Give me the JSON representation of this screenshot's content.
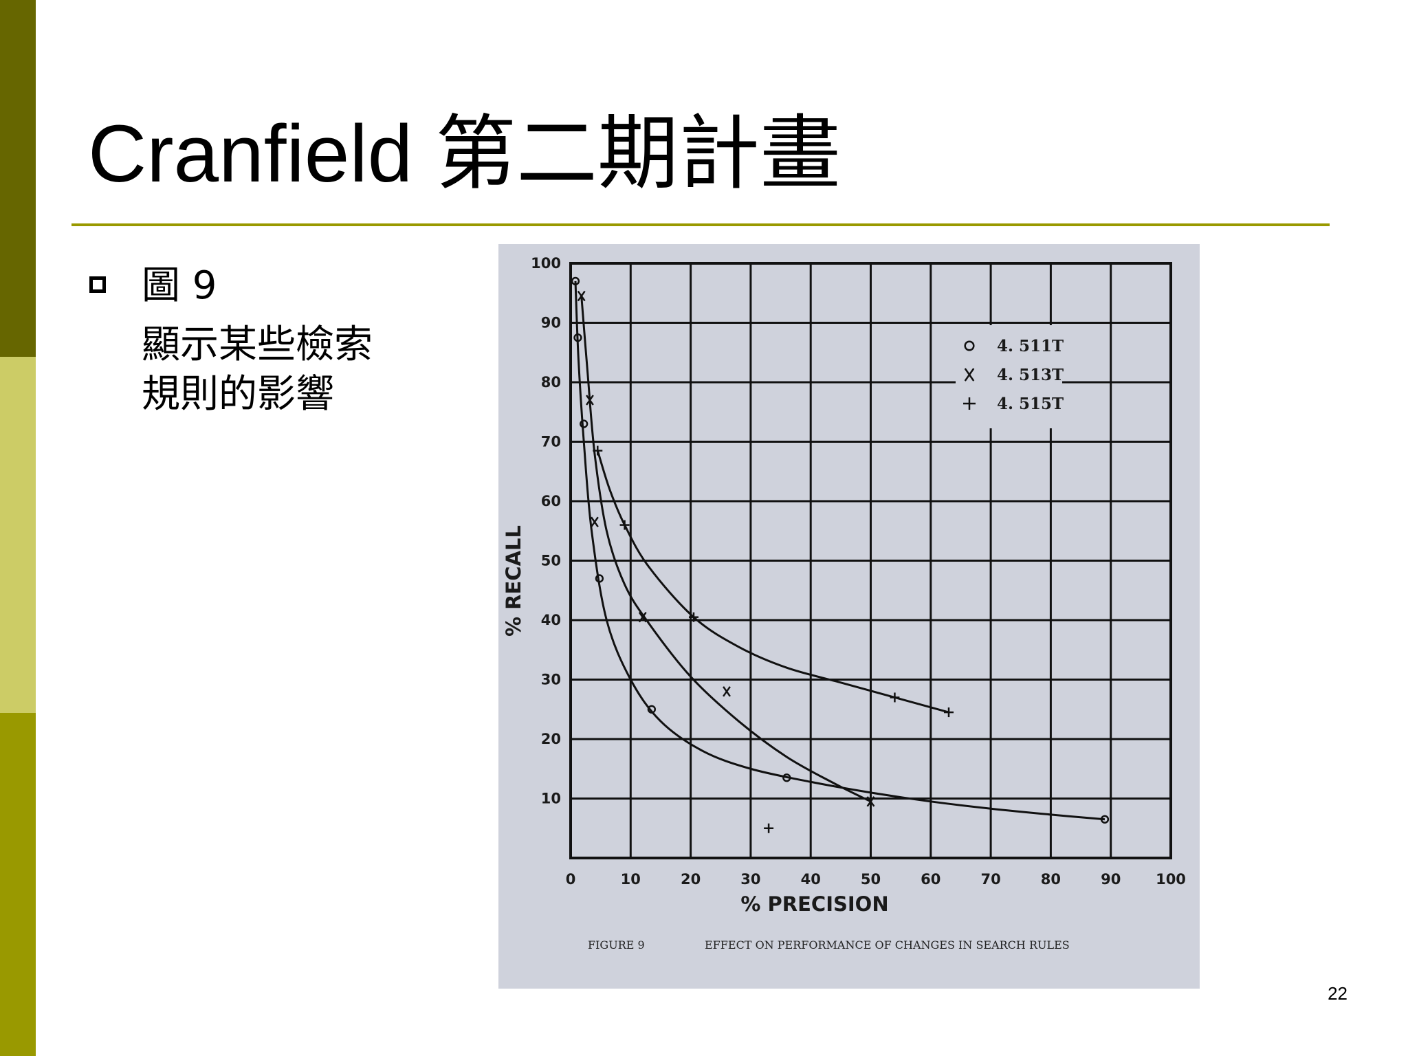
{
  "slide": {
    "title": "Cranfield 第二期計畫",
    "bullet": {
      "head": "圖 9",
      "lines": [
        "顯示某些檢索",
        "規則的影響"
      ]
    },
    "page_number": "22"
  },
  "colors": {
    "bar_top": "#666600",
    "bar_mid": "#cccc66",
    "bar_bottom": "#999900",
    "title_rule": "#999900",
    "figure_background": "#cfd2dc",
    "ink": "#111111"
  },
  "chart_data": {
    "type": "scatter",
    "caption_left": "FIGURE 9",
    "caption_right": "EFFECT ON PERFORMANCE OF CHANGES IN SEARCH RULES",
    "xlabel": "% PRECISION",
    "ylabel": "% RECALL",
    "xlim": [
      0,
      100
    ],
    "ylim": [
      0,
      100
    ],
    "x_ticks": [
      0,
      10,
      20,
      30,
      40,
      50,
      60,
      70,
      80,
      90,
      100
    ],
    "y_ticks": [
      10,
      20,
      30,
      40,
      50,
      60,
      70,
      80,
      90,
      100
    ],
    "grid": true,
    "legend_position": "top-right",
    "series": [
      {
        "name": "4.511T",
        "marker": "O",
        "points": [
          [
            0.8,
            97
          ],
          [
            1.2,
            87.5
          ],
          [
            2.2,
            73
          ],
          [
            4.8,
            47
          ],
          [
            13.5,
            25
          ],
          [
            36,
            13.5
          ],
          [
            89,
            6.5
          ]
        ],
        "curve": [
          [
            0.8,
            97
          ],
          [
            1.3,
            84
          ],
          [
            2.2,
            70
          ],
          [
            3.5,
            55
          ],
          [
            6,
            40
          ],
          [
            10,
            30
          ],
          [
            15,
            23
          ],
          [
            22,
            18
          ],
          [
            30,
            15
          ],
          [
            40,
            12.8
          ],
          [
            50,
            11
          ],
          [
            60,
            9.5
          ],
          [
            70,
            8.3
          ],
          [
            80,
            7.3
          ],
          [
            89,
            6.5
          ]
        ]
      },
      {
        "name": "4.513T",
        "marker": "X",
        "points": [
          [
            1.8,
            94.5
          ],
          [
            3.2,
            77
          ],
          [
            4,
            56.5
          ],
          [
            12,
            40.5
          ],
          [
            26,
            28
          ],
          [
            50,
            9.5
          ]
        ],
        "curve": [
          [
            1.8,
            94.5
          ],
          [
            2.8,
            82
          ],
          [
            4,
            68
          ],
          [
            6,
            55
          ],
          [
            9,
            46
          ],
          [
            13,
            39.5
          ],
          [
            20,
            30.5
          ],
          [
            28,
            23
          ],
          [
            36,
            17
          ],
          [
            44,
            12.5
          ],
          [
            50,
            9.5
          ]
        ]
      },
      {
        "name": "4.515T",
        "marker": "+",
        "points": [
          [
            4.5,
            68.5
          ],
          [
            9,
            56
          ],
          [
            20.5,
            40.5
          ],
          [
            33,
            5
          ],
          [
            54,
            27
          ],
          [
            63,
            24.5
          ]
        ],
        "curve": [
          [
            4.5,
            68.5
          ],
          [
            6.5,
            62
          ],
          [
            9,
            56
          ],
          [
            13,
            49
          ],
          [
            20.5,
            40.5
          ],
          [
            28,
            35.5
          ],
          [
            36,
            32
          ],
          [
            45,
            29.5
          ],
          [
            54,
            27
          ],
          [
            63,
            24.5
          ]
        ]
      }
    ],
    "legend": [
      {
        "marker": "O",
        "label": "4. 511T"
      },
      {
        "marker": "X",
        "label": "4. 513T"
      },
      {
        "marker": "+",
        "label": "4. 515T"
      }
    ]
  }
}
